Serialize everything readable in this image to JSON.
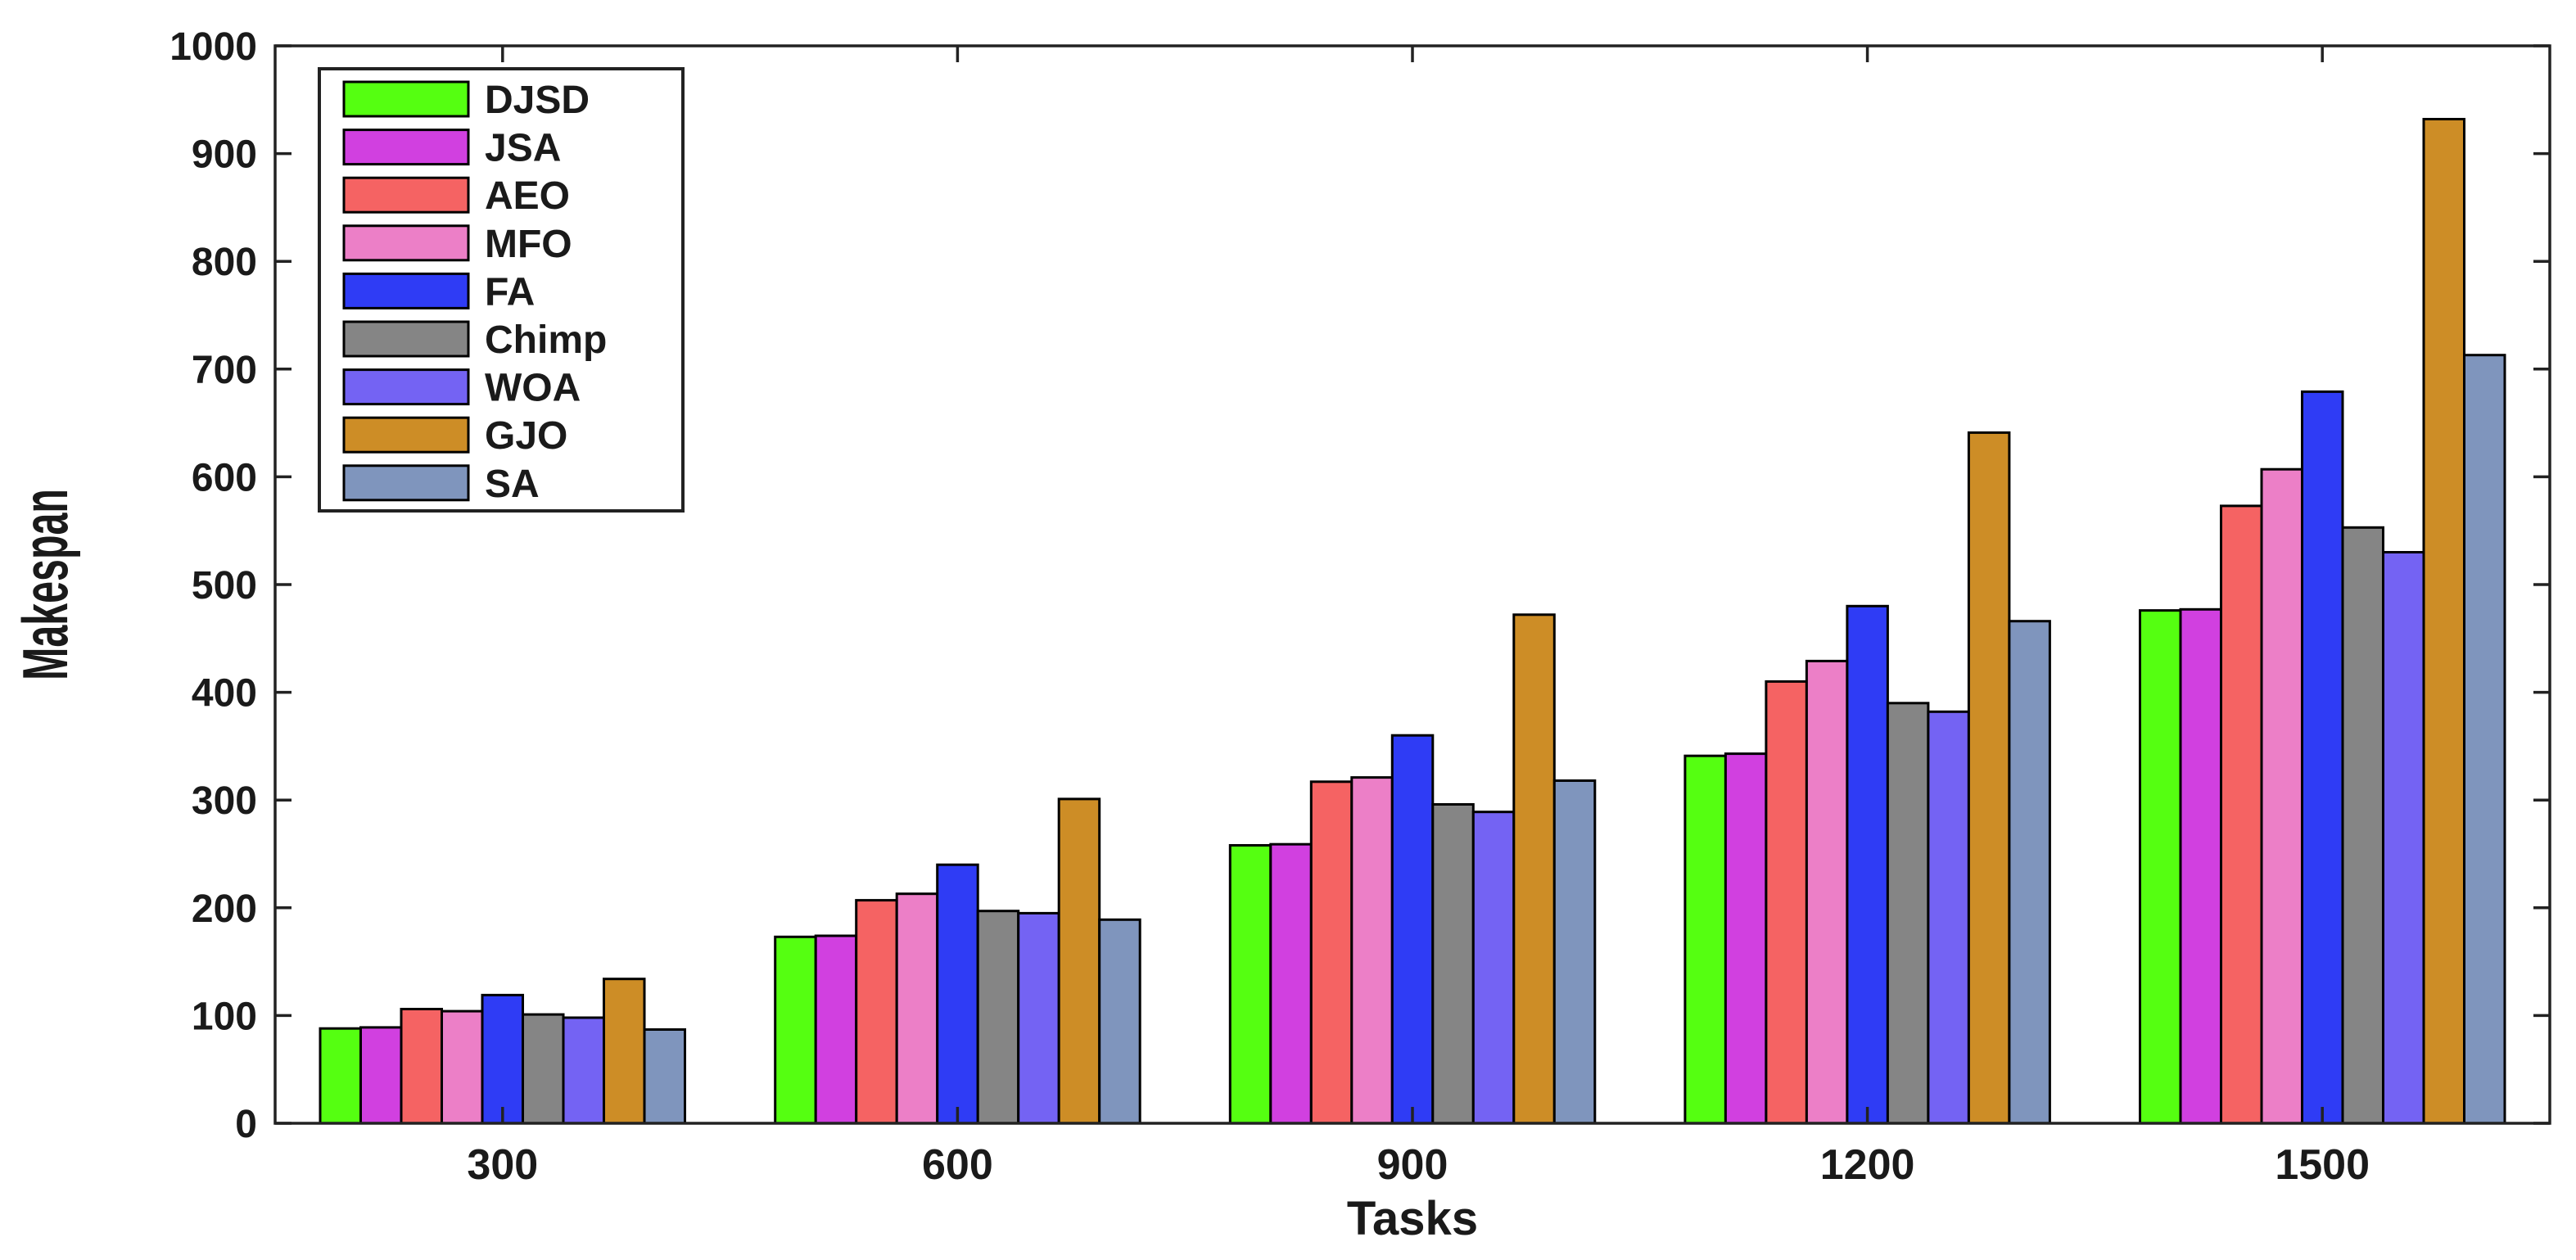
{
  "chart_data": {
    "type": "bar",
    "title": "",
    "xlabel": "Tasks",
    "ylabel": "Makespan",
    "categories": [
      "300",
      "600",
      "900",
      "1200",
      "1500"
    ],
    "ylim": [
      0,
      1000
    ],
    "yticks": [
      "0",
      "100",
      "200",
      "300",
      "400",
      "500",
      "600",
      "700",
      "800",
      "900",
      "1000"
    ],
    "grid": false,
    "legend_position": "top-left",
    "series": [
      {
        "name": "DJSD",
        "color": "#55ff11",
        "values": [
          88,
          173,
          258,
          341,
          476
        ]
      },
      {
        "name": "JSA",
        "color": "#d140e0",
        "values": [
          89,
          174,
          259,
          343,
          477
        ]
      },
      {
        "name": "AEO",
        "color": "#f56363",
        "values": [
          106,
          207,
          317,
          410,
          573
        ]
      },
      {
        "name": "MFO",
        "color": "#ec7fc7",
        "values": [
          104,
          213,
          321,
          429,
          607
        ]
      },
      {
        "name": "FA",
        "color": "#2f3cf5",
        "values": [
          119,
          240,
          360,
          480,
          679
        ]
      },
      {
        "name": "Chimp",
        "color": "#858585",
        "values": [
          101,
          197,
          296,
          390,
          553
        ]
      },
      {
        "name": "WOA",
        "color": "#7463f3",
        "values": [
          98,
          195,
          289,
          382,
          530
        ]
      },
      {
        "name": "GJO",
        "color": "#cd8d26",
        "values": [
          134,
          301,
          472,
          641,
          932
        ]
      },
      {
        "name": "SA",
        "color": "#7f95bd",
        "values": [
          87,
          189,
          318,
          466,
          713
        ]
      }
    ]
  }
}
